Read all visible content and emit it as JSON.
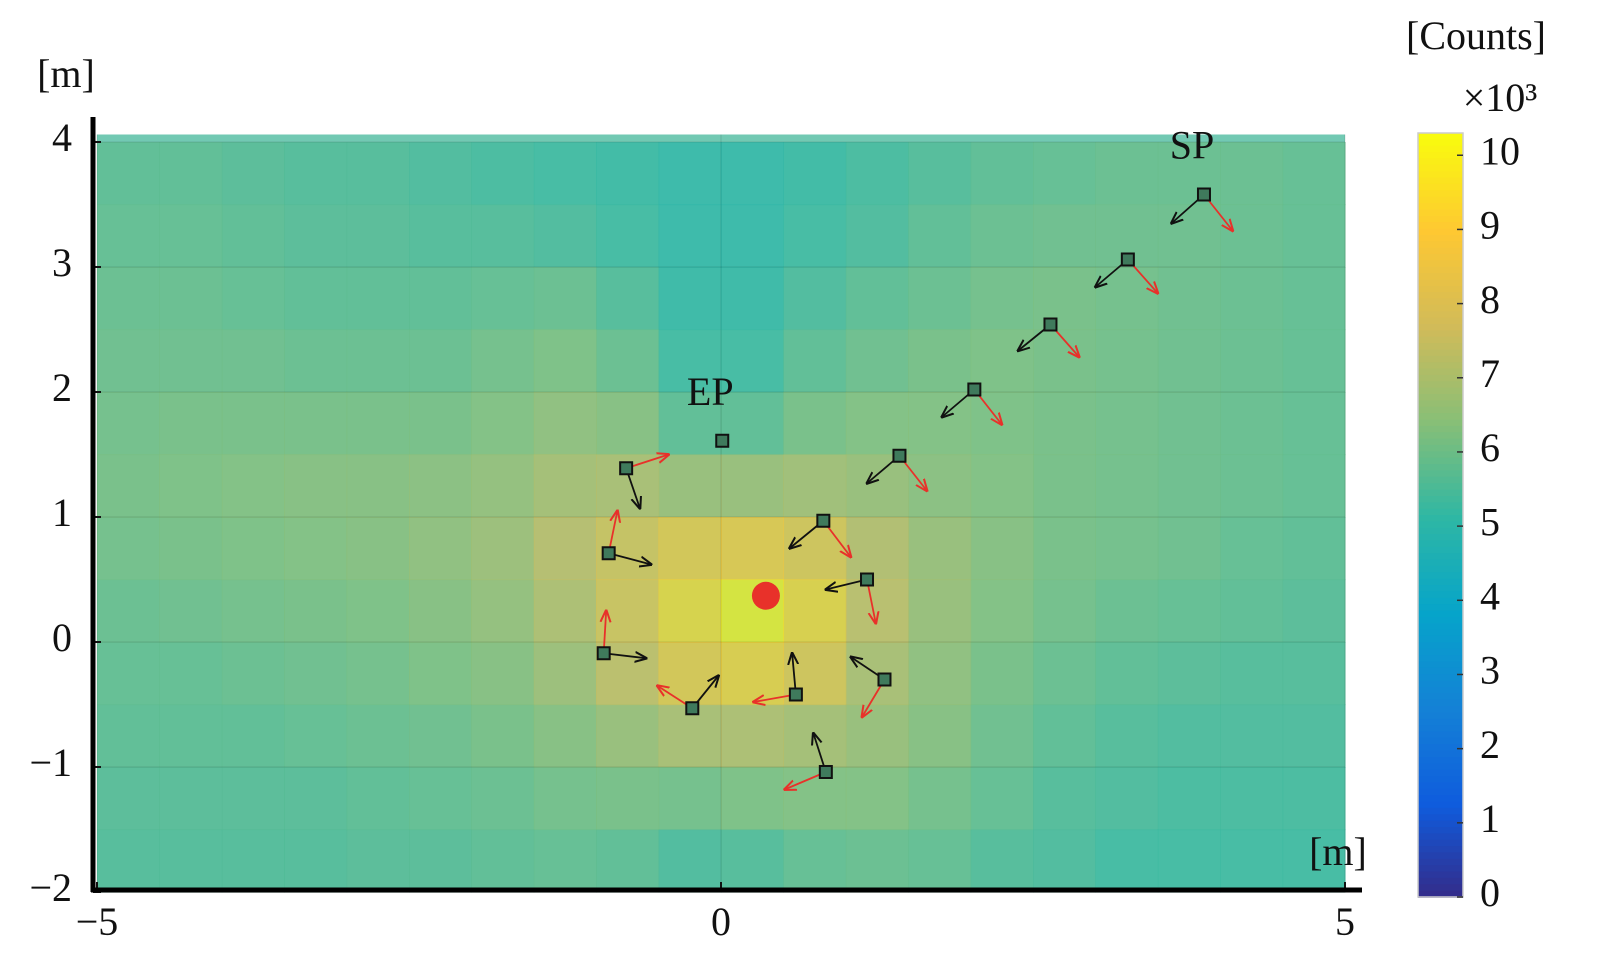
{
  "chart_data": {
    "type": "heatmap",
    "x_label": "[m]",
    "y_label": "[m]",
    "xlim": [
      -5,
      5
    ],
    "ylim": [
      -2,
      4.06
    ],
    "xticks": [
      {
        "value": -5,
        "label": "−5"
      },
      0,
      5
    ],
    "yticks": [
      {
        "value": -2,
        "label": "−2"
      },
      {
        "value": -1,
        "label": "−1"
      },
      0,
      1,
      2,
      3,
      4
    ],
    "grid": true,
    "colormap": "parula",
    "colorbar": {
      "label": "[Counts]",
      "multiplier": "×10³",
      "clim": [
        0,
        10.3
      ],
      "ticks": [
        0,
        1,
        2,
        3,
        4,
        5,
        6,
        7,
        8,
        9,
        10
      ]
    },
    "heatmap": {
      "xbins": [
        -5,
        -4.5,
        -4,
        -3.5,
        -3,
        -2.5,
        -2,
        -1.5,
        -1,
        -0.5,
        0,
        0.5,
        1,
        1.5,
        2,
        2.5,
        3,
        3.5,
        4,
        4.5,
        5
      ],
      "ybins": [
        4,
        3.5,
        3,
        2.5,
        2,
        1.5,
        1,
        0.5,
        0,
        -0.5,
        -1,
        -1.5,
        -2
      ],
      "values": [
        [
          5.8,
          5.8,
          5.7,
          5.6,
          5.6,
          5.5,
          5.4,
          5.3,
          5.2,
          5.0,
          5.0,
          5.2,
          5.4,
          5.6,
          5.8,
          5.9,
          6.0,
          6.0,
          6.0,
          5.9
        ],
        [
          5.9,
          5.9,
          5.8,
          5.7,
          5.7,
          5.6,
          5.6,
          5.5,
          5.3,
          5.0,
          5.0,
          5.3,
          5.5,
          5.8,
          6.0,
          6.1,
          6.1,
          6.1,
          6.0,
          5.9
        ],
        [
          6.0,
          6.0,
          5.9,
          5.8,
          5.8,
          5.8,
          5.9,
          6.0,
          5.6,
          5.1,
          5.1,
          5.5,
          5.8,
          6.0,
          6.2,
          6.3,
          6.2,
          6.1,
          6.0,
          5.9
        ],
        [
          6.1,
          6.1,
          6.1,
          6.0,
          6.0,
          6.0,
          6.2,
          6.4,
          6.0,
          5.3,
          5.3,
          5.8,
          6.1,
          6.3,
          6.4,
          6.3,
          6.2,
          6.1,
          6.0,
          5.9
        ],
        [
          6.2,
          6.3,
          6.3,
          6.3,
          6.3,
          6.3,
          6.5,
          6.8,
          6.6,
          5.8,
          5.8,
          6.3,
          6.5,
          6.5,
          6.4,
          6.3,
          6.2,
          6.1,
          6.0,
          5.9
        ],
        [
          6.3,
          6.4,
          6.5,
          6.6,
          6.6,
          6.7,
          6.9,
          7.3,
          7.4,
          7.0,
          7.0,
          7.2,
          7.0,
          6.7,
          6.5,
          6.3,
          6.2,
          6.1,
          6.0,
          5.9
        ],
        [
          6.2,
          6.3,
          6.4,
          6.5,
          6.6,
          6.8,
          7.1,
          7.7,
          8.3,
          8.8,
          9.0,
          8.6,
          7.6,
          7.0,
          6.6,
          6.3,
          6.2,
          6.1,
          5.9,
          5.8
        ],
        [
          6.0,
          6.1,
          6.2,
          6.3,
          6.4,
          6.6,
          6.9,
          7.5,
          8.4,
          9.4,
          10.0,
          9.3,
          7.8,
          7.0,
          6.5,
          6.2,
          6.0,
          5.9,
          5.8,
          5.7
        ],
        [
          5.9,
          5.9,
          6.0,
          6.1,
          6.2,
          6.4,
          6.6,
          7.1,
          7.9,
          8.8,
          9.2,
          8.6,
          7.4,
          6.8,
          6.3,
          6.0,
          5.8,
          5.7,
          5.6,
          5.6
        ],
        [
          5.8,
          5.8,
          5.8,
          5.9,
          6.0,
          6.1,
          6.3,
          6.6,
          7.0,
          7.4,
          7.5,
          7.3,
          7.0,
          6.6,
          6.1,
          5.8,
          5.6,
          5.5,
          5.5,
          5.5
        ],
        [
          5.7,
          5.7,
          5.7,
          5.7,
          5.8,
          5.9,
          6.0,
          6.2,
          6.3,
          6.2,
          6.4,
          6.5,
          6.5,
          6.2,
          5.9,
          5.6,
          5.5,
          5.4,
          5.4,
          5.4
        ],
        [
          5.6,
          5.6,
          5.6,
          5.6,
          5.7,
          5.7,
          5.8,
          5.9,
          5.8,
          5.5,
          5.6,
          5.9,
          6.0,
          5.9,
          5.6,
          5.5,
          5.3,
          5.3,
          5.3,
          5.3
        ]
      ]
    },
    "source": {
      "x": 0.36,
      "y": 0.37,
      "color": "#e8312a"
    },
    "points": [
      {
        "label": "SP",
        "x": 3.87,
        "y": 3.58,
        "black": [
          -0.26,
          -0.23
        ],
        "red": [
          0.23,
          -0.29
        ]
      },
      {
        "x": 3.26,
        "y": 3.06,
        "black": [
          -0.26,
          -0.22
        ],
        "red": [
          0.24,
          -0.27
        ]
      },
      {
        "x": 2.64,
        "y": 2.54,
        "black": [
          -0.26,
          -0.21
        ],
        "red": [
          0.23,
          -0.26
        ]
      },
      {
        "x": 2.03,
        "y": 2.02,
        "black": [
          -0.26,
          -0.22
        ],
        "red": [
          0.22,
          -0.28
        ]
      },
      {
        "x": 1.43,
        "y": 1.49,
        "black": [
          -0.26,
          -0.22
        ],
        "red": [
          0.22,
          -0.28
        ]
      },
      {
        "x": 0.82,
        "y": 0.97,
        "black": [
          -0.27,
          -0.22
        ],
        "red": [
          0.22,
          -0.29
        ]
      },
      {
        "x": 1.17,
        "y": 0.5,
        "black": [
          -0.33,
          -0.08
        ],
        "red": [
          0.07,
          -0.35
        ]
      },
      {
        "x": 1.31,
        "y": -0.3,
        "black": [
          -0.27,
          0.18
        ],
        "red": [
          -0.18,
          -0.3
        ]
      },
      {
        "x": 0.84,
        "y": -1.04,
        "black": [
          -0.1,
          0.31
        ],
        "red": [
          -0.33,
          -0.14
        ]
      },
      {
        "x": 0.6,
        "y": -0.42,
        "black": [
          -0.03,
          0.33
        ],
        "red": [
          -0.34,
          -0.06
        ]
      },
      {
        "x": -0.23,
        "y": -0.53,
        "black": [
          0.21,
          0.26
        ],
        "red": [
          -0.28,
          0.18
        ]
      },
      {
        "x": -0.94,
        "y": -0.09,
        "black": [
          0.34,
          -0.04
        ],
        "red": [
          0.02,
          0.34
        ]
      },
      {
        "x": -0.9,
        "y": 0.71,
        "black": [
          0.34,
          -0.09
        ],
        "red": [
          0.07,
          0.34
        ]
      },
      {
        "x": -0.76,
        "y": 1.39,
        "black": [
          0.11,
          -0.32
        ],
        "red": [
          0.34,
          0.11
        ]
      },
      {
        "label": "EP",
        "x": 0.01,
        "y": 1.61
      }
    ]
  }
}
